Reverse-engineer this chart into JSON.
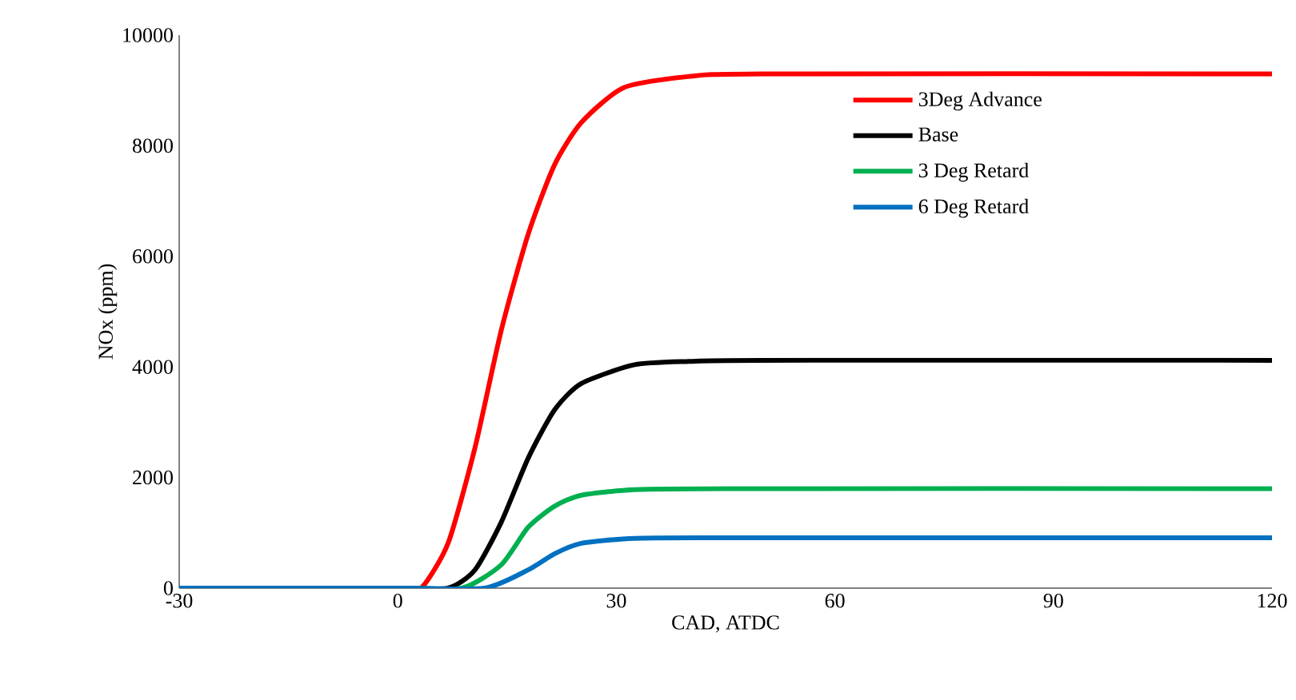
{
  "chart_data": {
    "type": "line",
    "xlabel": "CAD, ATDC",
    "ylabel": "NOx (ppm)",
    "xlim": [
      -30,
      120
    ],
    "ylim": [
      0,
      10000
    ],
    "xticks": [
      -30,
      0,
      30,
      60,
      90,
      120
    ],
    "yticks": [
      0,
      2000,
      4000,
      6000,
      8000,
      10000
    ],
    "legend": "top right",
    "marker": "none",
    "line_style": "solid",
    "grid": false,
    "series": [
      {
        "name": "3Deg Advance",
        "color": "#ff0000",
        "x": [
          -30,
          0,
          3.2,
          6.9,
          10.6,
          14.2,
          17.9,
          21.5,
          25.2,
          31,
          39.8,
          50,
          120
        ],
        "values": [
          0,
          0,
          0,
          810,
          2540,
          4660,
          6400,
          7650,
          8420,
          9050,
          9250,
          9300,
          9300
        ]
      },
      {
        "name": "Base",
        "color": "#000000",
        "x": [
          -30,
          0,
          6.9,
          10.6,
          14.2,
          17.9,
          21.5,
          25.2,
          32.5,
          40,
          50,
          120
        ],
        "values": [
          0,
          0,
          0,
          330,
          1190,
          2350,
          3220,
          3700,
          4040,
          4100,
          4120,
          4120
        ]
      },
      {
        "name": "3 Deg Retard",
        "color": "#00b050",
        "x": [
          -30,
          0,
          8.8,
          14.2,
          17.9,
          21.5,
          25.2,
          32.5,
          45,
          120
        ],
        "values": [
          0,
          0,
          0,
          420,
          1100,
          1480,
          1680,
          1780,
          1800,
          1800
        ]
      },
      {
        "name": "6 Deg Retard",
        "color": "#0070c0",
        "x": [
          -30,
          0,
          11.9,
          17.9,
          21.5,
          25.2,
          32.5,
          45,
          120
        ],
        "values": [
          0,
          0,
          0,
          330,
          620,
          810,
          900,
          910,
          910
        ]
      }
    ]
  }
}
